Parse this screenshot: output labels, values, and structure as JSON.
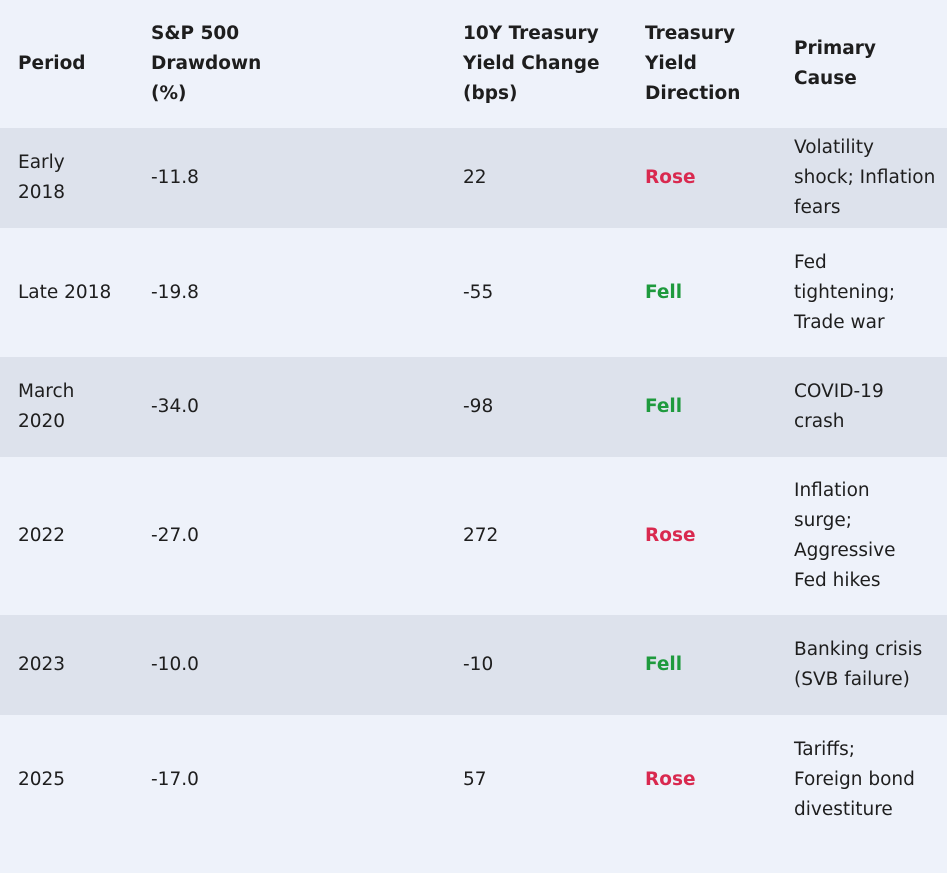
{
  "colors": {
    "background": "#eef2fa",
    "row_shaded": "#dde2ec",
    "rose": "#d9294f",
    "fell": "#1e9a3d"
  },
  "table": {
    "headers": {
      "period": "Period",
      "drawdown": "S&P 500 Drawdown (%)",
      "yield_change": "10Y Treasury Yield Change (bps)",
      "direction": "Treasury Yield Direction",
      "cause": "Primary Cause"
    },
    "rows": [
      {
        "period": "Early 2018",
        "drawdown": "-11.8",
        "yield_change": "22",
        "direction": "Rose",
        "cause": "Volatility shock; Inflation fears"
      },
      {
        "period": "Late 2018",
        "drawdown": "-19.8",
        "yield_change": "-55",
        "direction": "Fell",
        "cause": "Fed tightening; Trade war"
      },
      {
        "period": "March 2020",
        "drawdown": "-34.0",
        "yield_change": "-98",
        "direction": "Fell",
        "cause": "COVID-19 crash"
      },
      {
        "period": "2022",
        "drawdown": "-27.0",
        "yield_change": "272",
        "direction": "Rose",
        "cause": "Inflation surge; Aggressive Fed hikes"
      },
      {
        "period": "2023",
        "drawdown": "-10.0",
        "yield_change": "-10",
        "direction": "Fell",
        "cause": "Banking crisis (SVB failure)"
      },
      {
        "period": "2025",
        "drawdown": "-17.0",
        "yield_change": "57",
        "direction": "Rose",
        "cause": "Tariffs; Foreign bond divestiture"
      }
    ]
  }
}
